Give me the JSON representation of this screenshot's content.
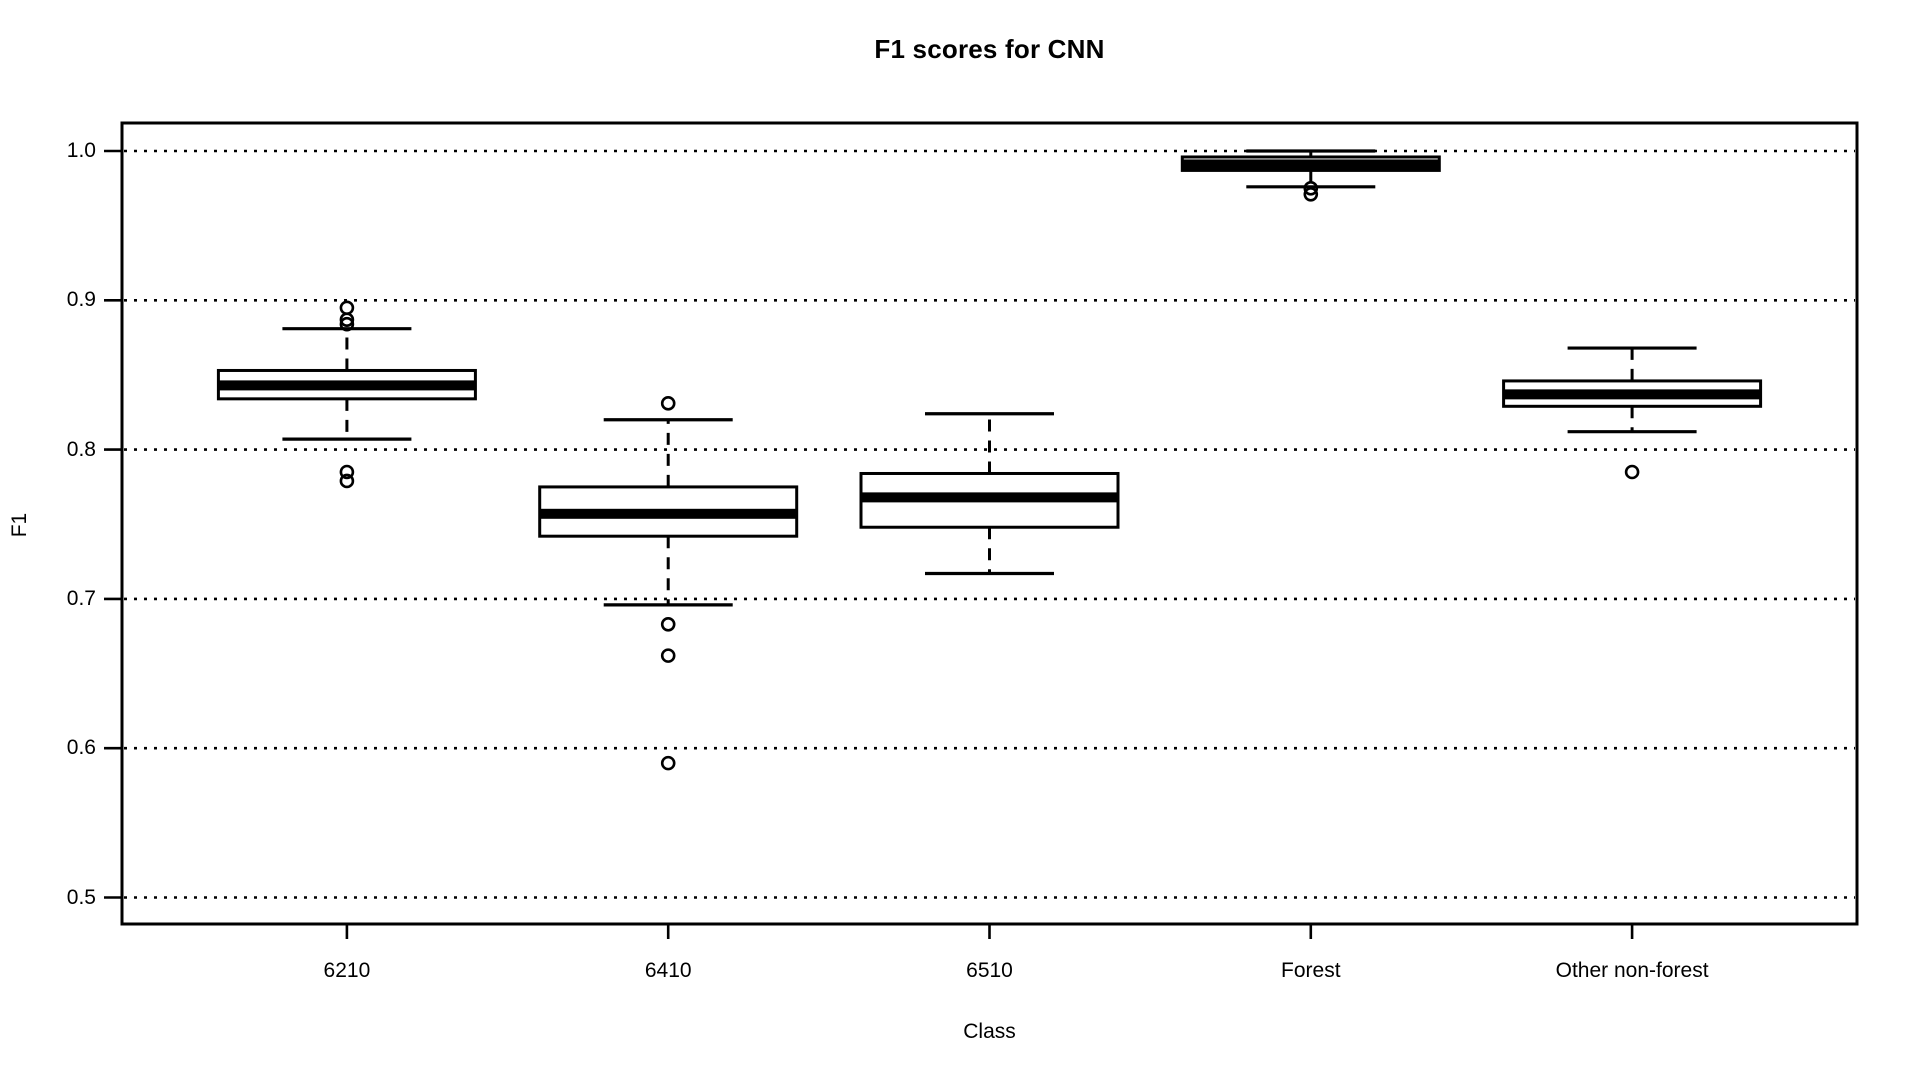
{
  "page": {
    "background_color": "#ffffff",
    "foreground_color": "#000000"
  },
  "chart_data": {
    "type": "boxplot",
    "title": "F1 scores for CNN",
    "xlabel": "Class",
    "ylabel": "F1",
    "ylim": [
      0.47,
      1.02
    ],
    "grid": "horizontal-dotted",
    "legend": "none",
    "yticks": [
      "1.0",
      "0.9",
      "0.8",
      "0.7",
      "0.6",
      "0.5"
    ],
    "ytick_values": [
      1.0,
      0.9,
      0.8,
      0.7,
      0.6,
      0.5
    ],
    "categories": [
      "6210",
      "6410",
      "6510",
      "Forest",
      "Other non-forest"
    ],
    "boxes": [
      {
        "category": "6210",
        "whisker_low": 0.807,
        "q1": 0.834,
        "median": 0.843,
        "q3": 0.853,
        "whisker_high": 0.881,
        "outliers": [
          0.895,
          0.887,
          0.884,
          0.785,
          0.779
        ]
      },
      {
        "category": "6410",
        "whisker_low": 0.696,
        "q1": 0.742,
        "median": 0.757,
        "q3": 0.775,
        "whisker_high": 0.82,
        "outliers": [
          0.831,
          0.683,
          0.662,
          0.59
        ]
      },
      {
        "category": "6510",
        "whisker_low": 0.717,
        "q1": 0.748,
        "median": 0.768,
        "q3": 0.784,
        "whisker_high": 0.824,
        "outliers": []
      },
      {
        "category": "Forest",
        "whisker_low": 0.976,
        "q1": 0.987,
        "median": 0.991,
        "q3": 0.996,
        "whisker_high": 1.0,
        "outliers": [
          0.975,
          0.971
        ]
      },
      {
        "category": "Other non-forest",
        "whisker_low": 0.812,
        "q1": 0.829,
        "median": 0.837,
        "q3": 0.846,
        "whisker_high": 0.868,
        "outliers": [
          0.785
        ]
      }
    ],
    "style": {
      "box_fill": "#ffffff",
      "line_color": "#000000",
      "median_color": "#000000"
    }
  }
}
